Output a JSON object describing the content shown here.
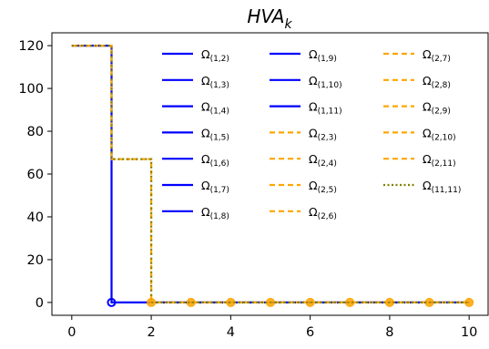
{
  "chart_data": {
    "type": "line",
    "title": "HVA",
    "title_subscript": "k",
    "xlabel": "",
    "ylabel": "",
    "xlim": [
      -0.5,
      10.5
    ],
    "ylim": [
      -6,
      126
    ],
    "xticks": [
      0,
      2,
      4,
      6,
      8,
      10
    ],
    "yticks": [
      0,
      20,
      40,
      60,
      80,
      100,
      120
    ],
    "grid": false,
    "legend_position": "upper-right (inside axes)",
    "colors": {
      "blue": "#0000ff",
      "orange": "#ffa500",
      "olive": "#808000"
    },
    "series_groups": [
      {
        "names": [
          "Ω(1,2)",
          "Ω(1,3)",
          "Ω(1,4)",
          "Ω(1,5)",
          "Ω(1,6)",
          "Ω(1,7)",
          "Ω(1,8)",
          "Ω(1,9)",
          "Ω(1,10)",
          "Ω(1,11)"
        ],
        "color": "blue",
        "style": "solid",
        "x": [
          0,
          1,
          1,
          2,
          3,
          4,
          5,
          6,
          7,
          8,
          9,
          10
        ],
        "y": [
          120,
          120,
          0,
          0,
          0,
          0,
          0,
          0,
          0,
          0,
          0,
          0
        ]
      },
      {
        "names": [
          "Ω(2,3)",
          "Ω(2,4)",
          "Ω(2,5)",
          "Ω(2,6)",
          "Ω(2,7)",
          "Ω(2,8)",
          "Ω(2,9)",
          "Ω(2,10)",
          "Ω(2,11)"
        ],
        "color": "orange",
        "style": "dashed",
        "x": [
          0,
          1,
          1,
          2,
          2,
          3,
          4,
          5,
          6,
          7,
          8,
          9,
          10
        ],
        "y": [
          120,
          120,
          67,
          67,
          0,
          0,
          0,
          0,
          0,
          0,
          0,
          0,
          0
        ]
      },
      {
        "names": [
          "Ω(11,11)"
        ],
        "color": "olive",
        "style": "dotted",
        "x": [
          0,
          1,
          1,
          2,
          2,
          3,
          4,
          5,
          6,
          7,
          8,
          9,
          10
        ],
        "y": [
          120,
          120,
          67,
          67,
          0,
          0,
          0,
          0,
          0,
          0,
          0,
          0,
          0
        ]
      }
    ],
    "markers": {
      "blue_open_circle": {
        "x": 1,
        "y": 0
      },
      "orange_circles": {
        "x": [
          2,
          3,
          4,
          5,
          6,
          7,
          8,
          9,
          10
        ],
        "y": [
          0,
          0,
          0,
          0,
          0,
          0,
          0,
          0,
          0
        ]
      }
    },
    "legend": {
      "columns": [
        [
          {
            "sym": "Ω",
            "sub": "(1,2)",
            "style": "blue-solid"
          },
          {
            "sym": "Ω",
            "sub": "(1,3)",
            "style": "blue-solid"
          },
          {
            "sym": "Ω",
            "sub": "(1,4)",
            "style": "blue-solid"
          },
          {
            "sym": "Ω",
            "sub": "(1,5)",
            "style": "blue-solid"
          },
          {
            "sym": "Ω",
            "sub": "(1,6)",
            "style": "blue-solid"
          },
          {
            "sym": "Ω",
            "sub": "(1,7)",
            "style": "blue-solid"
          },
          {
            "sym": "Ω",
            "sub": "(1,8)",
            "style": "blue-solid"
          }
        ],
        [
          {
            "sym": "Ω",
            "sub": "(1,9)",
            "style": "blue-solid"
          },
          {
            "sym": "Ω",
            "sub": "(1,10)",
            "style": "blue-solid"
          },
          {
            "sym": "Ω",
            "sub": "(1,11)",
            "style": "blue-solid"
          },
          {
            "sym": "Ω",
            "sub": "(2,3)",
            "style": "orange-dashed"
          },
          {
            "sym": "Ω",
            "sub": "(2,4)",
            "style": "orange-dashed"
          },
          {
            "sym": "Ω",
            "sub": "(2,5)",
            "style": "orange-dashed"
          },
          {
            "sym": "Ω",
            "sub": "(2,6)",
            "style": "orange-dashed"
          }
        ],
        [
          {
            "sym": "Ω",
            "sub": "(2,7)",
            "style": "orange-dashed"
          },
          {
            "sym": "Ω",
            "sub": "(2,8)",
            "style": "orange-dashed"
          },
          {
            "sym": "Ω",
            "sub": "(2,9)",
            "style": "orange-dashed"
          },
          {
            "sym": "Ω",
            "sub": "(2,10)",
            "style": "orange-dashed"
          },
          {
            "sym": "Ω",
            "sub": "(2,11)",
            "style": "orange-dashed"
          },
          {
            "sym": "Ω",
            "sub": "(11,11)",
            "style": "olive-dotted"
          }
        ]
      ]
    }
  }
}
